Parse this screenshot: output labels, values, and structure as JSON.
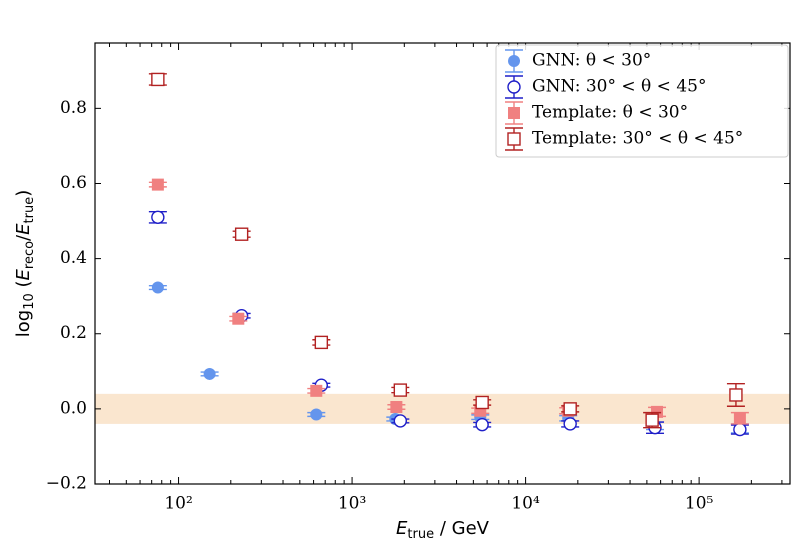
{
  "chart_data": {
    "type": "errorbar",
    "xlabel": [
      {
        "text": "E",
        "italic": true
      },
      {
        "text": "true",
        "sub": true
      },
      {
        "text": " / GeV"
      }
    ],
    "ylabel": [
      {
        "text": "log"
      },
      {
        "text": "10",
        "sub": true
      },
      {
        "text": " ("
      },
      {
        "text": "E",
        "italic": true
      },
      {
        "text": "reco",
        "sub": true
      },
      {
        "text": "/"
      },
      {
        "text": "E",
        "italic": true
      },
      {
        "text": "true",
        "sub": true
      },
      {
        "text": ")"
      }
    ],
    "xscale": "log",
    "xlim": [
      33,
      334000
    ],
    "ylim": [
      -0.2,
      0.974
    ],
    "xticks": [
      {
        "value": 100,
        "label": "10²"
      },
      {
        "value": 1000,
        "label": "10³"
      },
      {
        "value": 10000,
        "label": "10⁴"
      },
      {
        "value": 100000,
        "label": "10⁵"
      }
    ],
    "xminorticks": [
      40,
      50,
      60,
      70,
      80,
      90,
      200,
      300,
      400,
      500,
      600,
      700,
      800,
      900,
      2000,
      3000,
      4000,
      5000,
      6000,
      7000,
      8000,
      9000,
      20000,
      30000,
      40000,
      50000,
      60000,
      70000,
      80000,
      90000,
      200000,
      300000
    ],
    "yticks": [
      {
        "value": -0.2,
        "label": "−0.2"
      },
      {
        "value": 0,
        "label": "0.0"
      },
      0.2,
      0.4,
      0.6,
      0.8
    ],
    "shaded_band": {
      "range": [
        -0.04,
        0.04
      ],
      "color": "#fae6cf"
    },
    "legend": "upper right",
    "series": [
      {
        "name": "GNN: θ < 30°",
        "color": "#6495ed",
        "marker": "circle",
        "filled": true,
        "x": [
          76,
          151,
          622,
          1775,
          5480,
          17600,
          55700,
          171800
        ],
        "values": [
          0.323,
          0.093,
          -0.015,
          -0.027,
          -0.022,
          -0.025,
          -0.045,
          -0.052
        ],
        "errors": [
          0.005,
          0.005,
          0.005,
          0.005,
          0.006,
          0.007,
          0.01,
          0.012
        ]
      },
      {
        "name": "GNN: 30° < θ < 45°",
        "color": "#1f1fc8",
        "marker": "circle",
        "filled": false,
        "x": [
          76,
          231,
          665,
          1897,
          5620,
          18070,
          55700,
          171800
        ],
        "values": [
          0.51,
          0.248,
          0.063,
          -0.032,
          -0.042,
          -0.04,
          -0.05,
          -0.055
        ],
        "errors": [
          0.015,
          0.006,
          0.005,
          0.005,
          0.006,
          0.008,
          0.015,
          0.012
        ]
      },
      {
        "name": "Template: θ < 30°",
        "color": "#f08080",
        "marker": "square",
        "filled": true,
        "x": [
          76,
          221,
          622,
          1800,
          5480,
          17600,
          57200,
          171800
        ],
        "values": [
          0.597,
          0.24,
          0.048,
          0.005,
          -0.005,
          -0.005,
          -0.008,
          -0.025
        ],
        "errors": [
          0.006,
          0.006,
          0.006,
          0.006,
          0.007,
          0.008,
          0.012,
          0.015
        ]
      },
      {
        "name": "Template: 30° < θ < 45°",
        "color": "#b22222",
        "marker": "square",
        "filled": false,
        "x": [
          76,
          231,
          665,
          1897,
          5620,
          18070,
          53600,
          163000
        ],
        "values": [
          0.877,
          0.465,
          0.177,
          0.05,
          0.017,
          0,
          -0.03,
          0.037
        ],
        "errors": [
          0.015,
          0.008,
          0.007,
          0.007,
          0.007,
          0.008,
          0.02,
          0.03
        ]
      }
    ]
  }
}
